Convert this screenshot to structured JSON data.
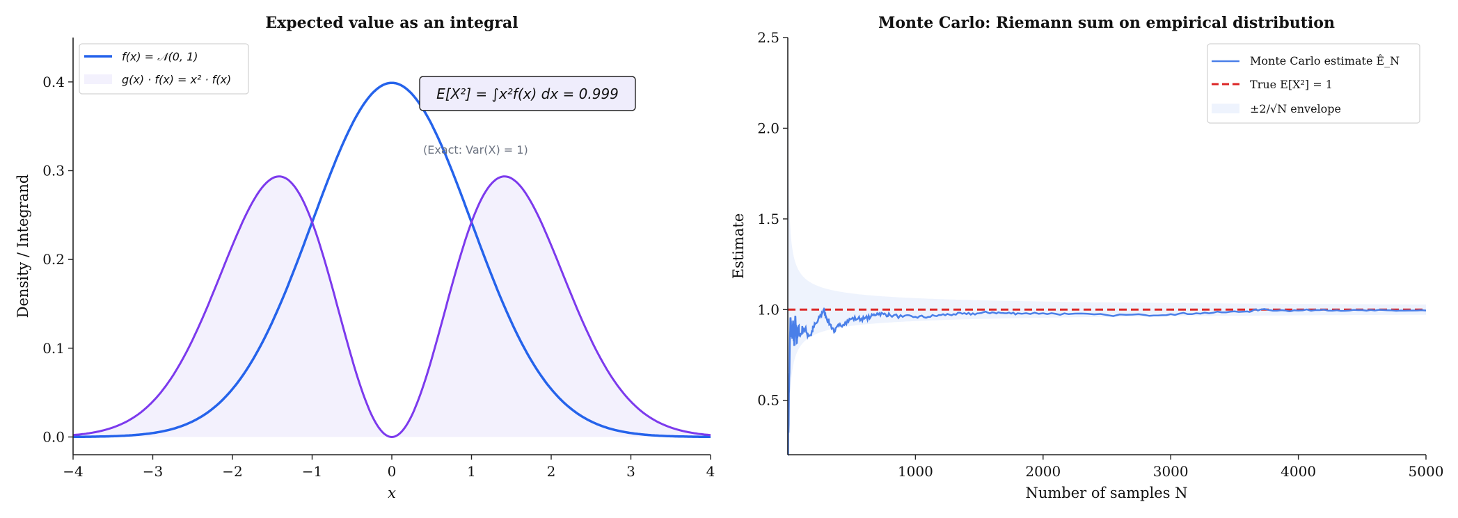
{
  "chart_data": [
    {
      "type": "line",
      "title": "Expected value as an integral",
      "xlabel": "x",
      "ylabel": "Density / Integrand",
      "xlim": [
        -4,
        4
      ],
      "ylim": [
        -0.02,
        0.45
      ],
      "xticks": [
        "−4",
        "−3",
        "−2",
        "−1",
        "0",
        "1",
        "2",
        "3",
        "4"
      ],
      "xtick_values": [
        -4,
        -3,
        -2,
        -1,
        0,
        1,
        2,
        3,
        4
      ],
      "yticks": [
        "0.0",
        "0.1",
        "0.2",
        "0.3",
        "0.4"
      ],
      "ytick_values": [
        0,
        0.1,
        0.2,
        0.3,
        0.4
      ],
      "grid": false,
      "legend_placement": "upper-left",
      "series": [
        {
          "name": "f(x) = 𝒩(0, 1)",
          "function": "standard normal pdf",
          "color": "#2563eb",
          "style": "line"
        },
        {
          "name": "g(x) · f(x) = x² · f(x)",
          "function": "x^2 * standard normal pdf",
          "color": "#7c3aed",
          "fill_color": "#f3f1fd",
          "style": "line+fill"
        }
      ],
      "annotation": "E[X²] = ∫x²f(x) dx = 0.999",
      "note": "(Exact: Var(X) = 1)"
    },
    {
      "type": "line",
      "title": "Monte Carlo: Riemann sum on empirical distribution",
      "xlabel": "Number of samples N",
      "ylabel": "Estimate",
      "xlim": [
        1,
        5000
      ],
      "ylim": [
        0.2,
        2.5
      ],
      "xticks": [
        "1000",
        "2000",
        "3000",
        "4000",
        "5000"
      ],
      "xtick_values": [
        1000,
        2000,
        3000,
        4000,
        5000
      ],
      "yticks": [
        "0.5",
        "1.0",
        "1.5",
        "2.0",
        "2.5"
      ],
      "ytick_values": [
        0.5,
        1.0,
        1.5,
        2.0,
        2.5
      ],
      "grid": false,
      "legend_placement": "upper-right",
      "series": [
        {
          "name": "Monte Carlo estimate Ê_N",
          "color": "#4a7fe8",
          "style": "line",
          "x": [
            1,
            10,
            20,
            30,
            40,
            50,
            60,
            70,
            80,
            100,
            120,
            150,
            180,
            200,
            230,
            260,
            280,
            300,
            330,
            370,
            400,
            450,
            500,
            550,
            600,
            650,
            700,
            750,
            800,
            900,
            1000,
            1100,
            1200,
            1300,
            1400,
            1500,
            1600,
            1700,
            1800,
            2000,
            2200,
            2500,
            2800,
            3000,
            3200,
            3400,
            3600,
            3700,
            3900,
            4000,
            4200,
            4400,
            4600,
            4800,
            5000
          ],
          "y": [
            0.2,
            0.55,
            0.95,
            0.85,
            0.92,
            0.8,
            0.96,
            0.82,
            0.9,
            0.86,
            0.9,
            0.87,
            0.86,
            0.9,
            0.93,
            0.97,
            1.0,
            0.96,
            0.92,
            0.88,
            0.91,
            0.93,
            0.95,
            0.95,
            0.95,
            0.96,
            0.98,
            0.975,
            0.97,
            0.96,
            0.96,
            0.96,
            0.97,
            0.975,
            0.975,
            0.98,
            0.985,
            0.98,
            0.98,
            0.98,
            0.975,
            0.97,
            0.97,
            0.975,
            0.98,
            0.985,
            0.99,
            1.0,
            0.995,
            0.995,
            1.0,
            0.995,
            0.995,
            0.995,
            0.995
          ]
        },
        {
          "name": "True E[X²] = 1",
          "value": 1,
          "color": "#dc2626",
          "style": "dashed"
        },
        {
          "name": "±2/√N envelope",
          "center": 1,
          "half_width": "2/sqrt(N)",
          "color": "#eef3fd",
          "style": "fill"
        }
      ]
    }
  ]
}
